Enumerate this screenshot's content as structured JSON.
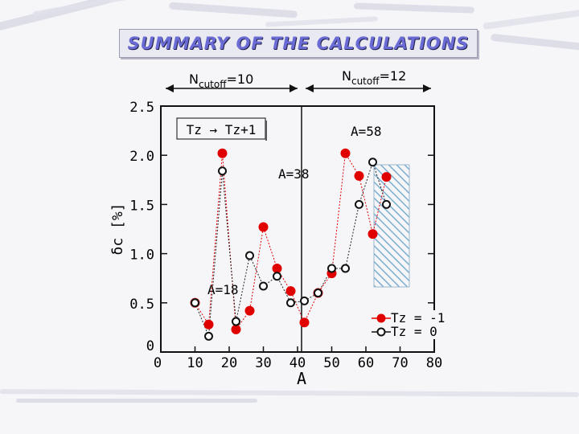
{
  "title": "SUMMARY OF THE CALCULATIONS",
  "colors": {
    "red": "#e00000",
    "hatch": "#7aaed0",
    "title_text": "#6b6bd6"
  },
  "chart_data": {
    "type": "scatter",
    "xlabel": "A",
    "ylabel": "δc [%]",
    "xlim": [
      0,
      80
    ],
    "ylim": [
      0,
      2.5
    ],
    "x_ticks": [
      "0",
      "10",
      "20",
      "30",
      "40",
      "50",
      "60",
      "70",
      "80"
    ],
    "y_ticks": [
      "0",
      "0.5",
      "1.0",
      "1.5",
      "2.0",
      "2.5"
    ],
    "grid": false,
    "legend_position": "bottom-right",
    "regions": {
      "left": {
        "label": "N",
        "sub": "cutoff",
        "value": "=10"
      },
      "right": {
        "label": "N",
        "sub": "cutoff",
        "value": "=12"
      }
    },
    "box_label": "Tz → Tz+1",
    "annotations": [
      "A=18",
      "A=38",
      "A=58"
    ],
    "series": [
      {
        "name": "Tz = -1",
        "marker": "filled-red",
        "x": [
          10,
          14,
          18,
          22,
          26,
          30,
          34,
          38,
          42,
          46,
          50,
          54,
          58,
          62,
          66
        ],
        "y": [
          0.5,
          0.28,
          2.02,
          0.23,
          0.42,
          1.27,
          0.85,
          0.62,
          0.3,
          0.6,
          0.8,
          2.02,
          1.79,
          1.2,
          1.78
        ]
      },
      {
        "name": "Tz = 0",
        "marker": "open",
        "x": [
          10,
          14,
          18,
          22,
          26,
          30,
          34,
          38,
          42,
          46,
          50,
          54,
          58,
          62,
          66
        ],
        "y": [
          0.5,
          0.16,
          1.84,
          0.31,
          0.98,
          0.67,
          0.77,
          0.5,
          0.52,
          0.6,
          0.85,
          0.85,
          1.5,
          1.93,
          1.5
        ]
      }
    ]
  }
}
